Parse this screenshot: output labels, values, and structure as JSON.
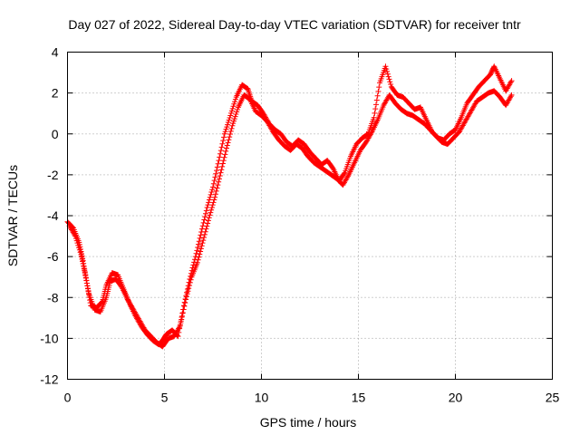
{
  "chart_data": {
    "type": "scatter",
    "title": "Day 027 of 2022, Sidereal Day-to-day VTEC variation (SDTVAR) for receiver tntr",
    "xlabel": "GPS time / hours",
    "ylabel": "SDTVAR / TECUs",
    "xlim": [
      0,
      25
    ],
    "ylim": [
      -12,
      4
    ],
    "xticks": [
      0,
      5,
      10,
      15,
      20,
      25
    ],
    "yticks": [
      -12,
      -10,
      -8,
      -6,
      -4,
      -2,
      0,
      2,
      4
    ],
    "xtick_labels": [
      "0",
      "5",
      "10",
      "15",
      "20",
      "25"
    ],
    "ytick_labels": [
      "-12",
      "-10",
      "-8",
      "-6",
      "-4",
      "-2",
      "0",
      "2",
      "4"
    ],
    "grid": true,
    "legend": false,
    "marker": "plus",
    "color": "#ff0000",
    "series": [
      {
        "x": [
          0.0,
          0.3,
          0.6,
          0.8,
          1.0,
          1.2,
          1.5,
          1.8,
          2.0,
          2.3,
          2.6,
          2.9,
          3.2,
          3.5,
          3.8,
          4.1,
          4.4,
          4.7,
          4.9,
          5.1,
          5.4,
          5.7,
          6.0,
          6.3,
          6.6,
          6.9,
          7.2,
          7.5,
          7.8,
          8.1,
          8.4,
          8.7,
          9.0,
          9.3,
          9.5,
          9.8,
          10.1,
          10.4,
          10.7,
          11.0,
          11.3,
          11.6,
          11.9,
          12.2,
          12.5,
          12.8,
          13.1,
          13.4,
          13.7,
          14.0,
          14.3,
          14.6,
          14.9,
          15.2,
          15.5,
          15.8,
          16.1,
          16.4,
          16.7,
          17.0,
          17.3,
          17.6,
          17.9,
          18.2,
          18.5,
          18.8,
          19.1,
          19.4,
          19.7,
          20.0,
          20.3,
          20.6,
          20.9,
          21.2,
          21.5,
          21.8,
          22.0,
          22.3,
          22.6,
          22.9
        ],
        "y": [
          -4.3,
          -4.6,
          -5.3,
          -6.2,
          -7.3,
          -8.4,
          -8.5,
          -8.2,
          -7.4,
          -6.8,
          -6.9,
          -7.6,
          -8.3,
          -8.9,
          -9.4,
          -9.8,
          -10.1,
          -10.3,
          -10.1,
          -9.8,
          -9.6,
          -9.9,
          -8.4,
          -7.1,
          -6.0,
          -4.8,
          -3.6,
          -2.6,
          -1.3,
          0.0,
          0.9,
          1.8,
          2.4,
          2.2,
          1.6,
          1.4,
          1.0,
          0.5,
          0.2,
          0.0,
          -0.4,
          -0.6,
          -0.3,
          -0.5,
          -0.9,
          -1.2,
          -1.5,
          -1.3,
          -1.7,
          -2.3,
          -1.9,
          -1.1,
          -0.5,
          -0.2,
          0.0,
          0.8,
          2.5,
          3.3,
          2.3,
          1.9,
          1.8,
          1.5,
          1.2,
          1.3,
          0.7,
          0.1,
          -0.2,
          -0.3,
          0.0,
          0.2,
          0.8,
          1.5,
          1.9,
          2.3,
          2.6,
          2.9,
          3.3,
          2.7,
          2.1,
          2.6
        ]
      },
      {
        "x": [
          0.1,
          0.4,
          0.7,
          0.9,
          1.1,
          1.4,
          1.7,
          2.0,
          2.2,
          2.5,
          2.8,
          3.1,
          3.4,
          3.7,
          4.0,
          4.3,
          4.6,
          4.9,
          5.2,
          5.5,
          5.8,
          6.1,
          6.4,
          6.7,
          7.0,
          7.3,
          7.6,
          7.9,
          8.2,
          8.5,
          8.8,
          9.1,
          9.4,
          9.7,
          10.0,
          10.3,
          10.6,
          10.9,
          11.2,
          11.5,
          11.8,
          12.1,
          12.4,
          12.7,
          13.0,
          13.3,
          13.6,
          13.9,
          14.2,
          14.5,
          14.8,
          15.1,
          15.4,
          15.7,
          16.0,
          16.3,
          16.6,
          16.9,
          17.2,
          17.5,
          17.8,
          18.1,
          18.4,
          18.7,
          19.0,
          19.3,
          19.6,
          19.9,
          20.2,
          20.5,
          20.8,
          21.1,
          21.4,
          21.7,
          22.0,
          22.3,
          22.6,
          22.9
        ],
        "y": [
          -4.5,
          -5.0,
          -5.9,
          -6.8,
          -7.8,
          -8.6,
          -8.7,
          -8.0,
          -7.2,
          -7.1,
          -7.5,
          -8.1,
          -8.6,
          -9.1,
          -9.6,
          -9.9,
          -10.2,
          -10.4,
          -10.0,
          -9.9,
          -9.4,
          -8.1,
          -7.0,
          -6.3,
          -5.2,
          -4.1,
          -3.1,
          -1.9,
          -0.7,
          0.4,
          1.3,
          1.9,
          1.7,
          1.1,
          0.9,
          0.6,
          0.1,
          -0.3,
          -0.6,
          -0.8,
          -0.5,
          -0.7,
          -1.1,
          -1.4,
          -1.6,
          -1.8,
          -2.0,
          -2.2,
          -2.5,
          -2.0,
          -1.4,
          -0.8,
          -0.4,
          0.1,
          0.7,
          1.4,
          1.9,
          1.5,
          1.2,
          1.0,
          0.9,
          0.7,
          0.5,
          0.2,
          -0.1,
          -0.4,
          -0.5,
          -0.2,
          0.1,
          0.6,
          1.1,
          1.6,
          1.8,
          2.0,
          2.1,
          1.8,
          1.4,
          1.9
        ]
      }
    ]
  }
}
